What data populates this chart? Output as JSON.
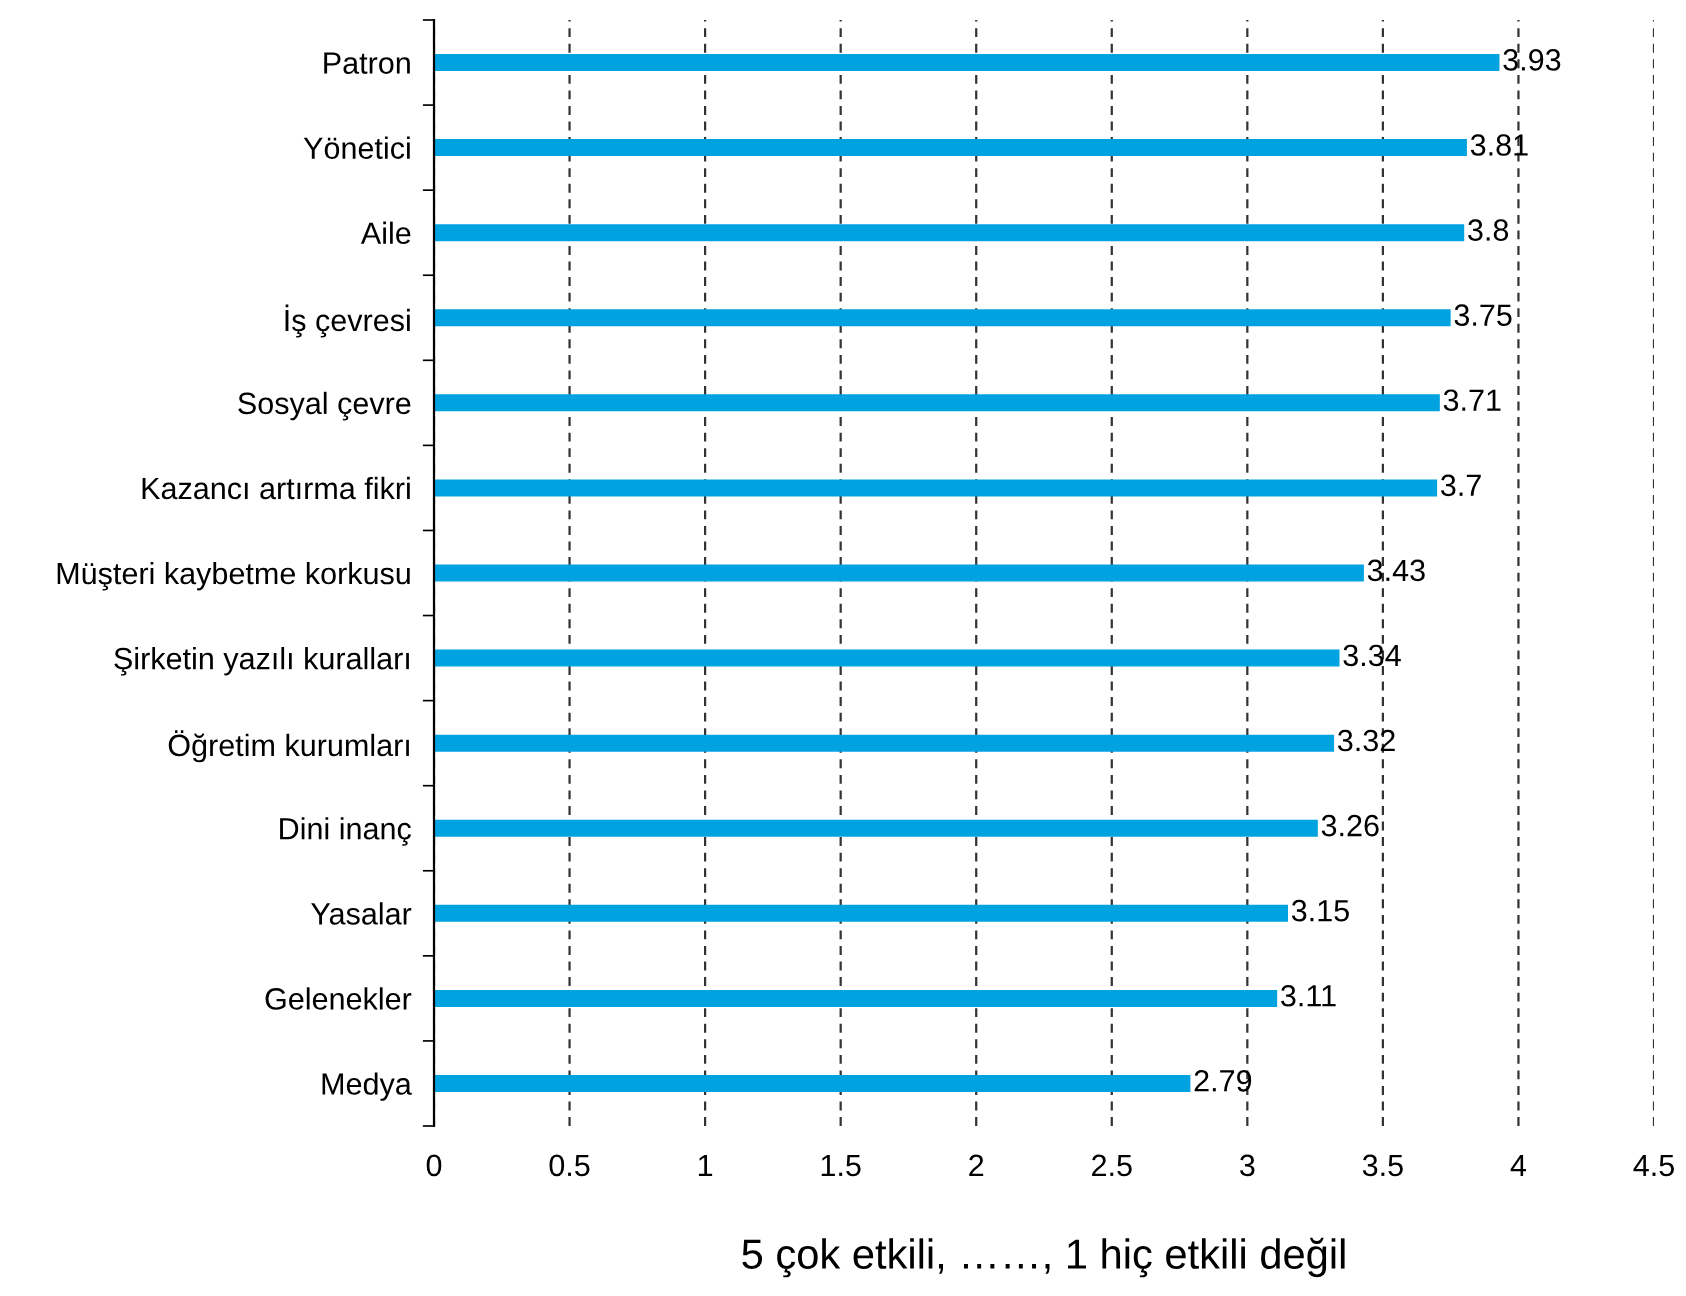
{
  "chart_data": {
    "type": "bar",
    "orientation": "horizontal",
    "xlabel": "5 çok etkili, ……, 1 hiç etkili değil",
    "categories": [
      "Patron",
      "Yönetici",
      "Aile",
      "İş çevresi",
      "Sosyal çevre",
      "Kazancı artırma fikri",
      "Müşteri kaybetme korkusu",
      "Şirketin yazılı kuralları",
      "Öğretim kurumları",
      "Dini inanç",
      "Yasalar",
      "Gelenekler",
      "Medya"
    ],
    "values": [
      3.93,
      3.81,
      3.8,
      3.75,
      3.71,
      3.7,
      3.43,
      3.34,
      3.32,
      3.26,
      3.15,
      3.11,
      2.79
    ],
    "color": "#00a3e0",
    "data_labels": true,
    "grid": "x",
    "legend": false,
    "xlim": [
      0,
      4.5
    ],
    "xticks": [
      0,
      0.5,
      1,
      1.5,
      2,
      2.5,
      3,
      3.5,
      4,
      4.5
    ]
  }
}
